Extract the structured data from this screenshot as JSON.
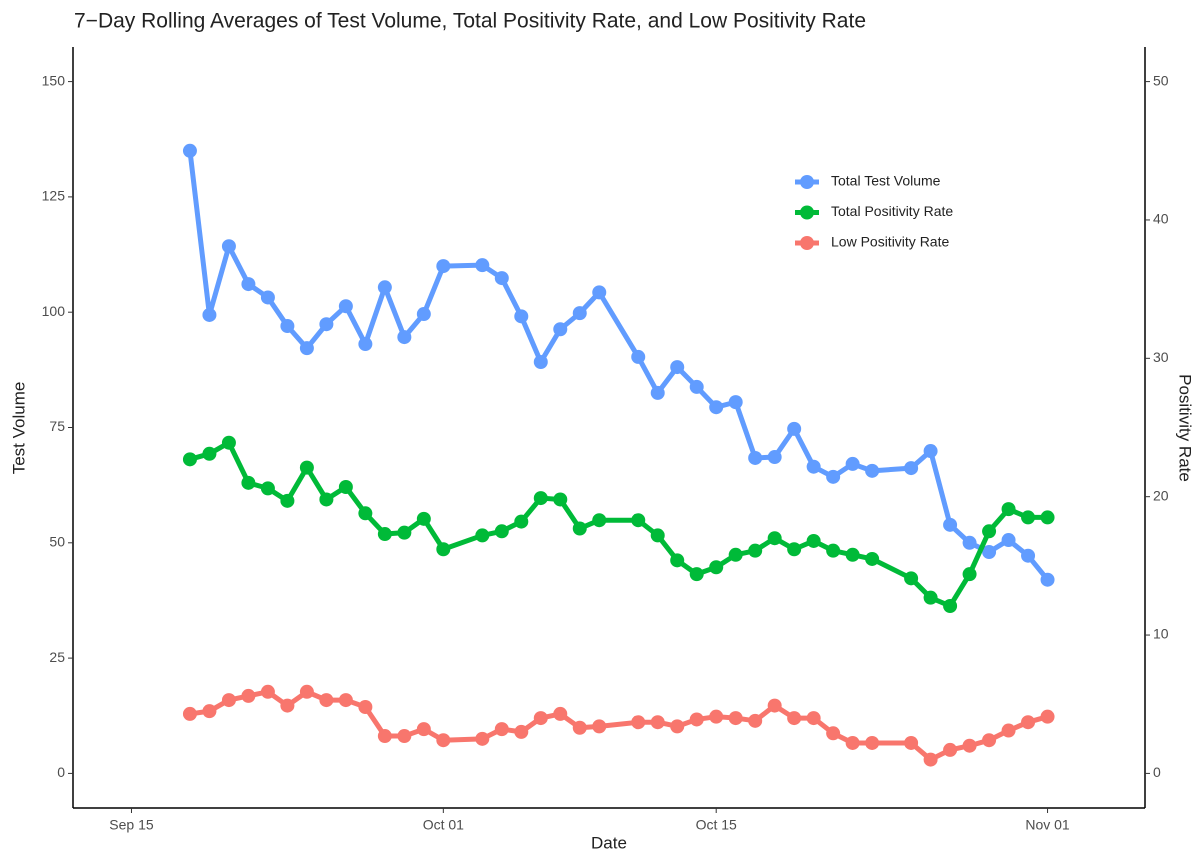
{
  "chart_data": {
    "type": "line",
    "title": "7−Day Rolling Averages of Test Volume, Total Positivity Rate, and Low Positivity Rate",
    "x_label": "Date",
    "y_label": "Test Volume",
    "y2_label": "Positivity Rate",
    "x": [
      "09-18",
      "09-19",
      "09-20",
      "09-21",
      "09-22",
      "09-23",
      "09-24",
      "09-25",
      "09-26",
      "09-27",
      "09-28",
      "09-29",
      "09-30",
      "10-01",
      "10-03",
      "10-04",
      "10-05",
      "10-06",
      "10-07",
      "10-08",
      "10-09",
      "10-11",
      "10-12",
      "10-13",
      "10-14",
      "10-15",
      "10-16",
      "10-17",
      "10-18",
      "10-19",
      "10-20",
      "10-21",
      "10-22",
      "10-23",
      "10-25",
      "10-26",
      "10-27",
      "10-28",
      "10-29",
      "10-30",
      "10-31",
      "11-01"
    ],
    "xlim": [
      "09-12",
      "11-06"
    ],
    "xticks": [
      {
        "value": "09-15",
        "label": "Sep 15"
      },
      {
        "value": "10-01",
        "label": "Oct 01"
      },
      {
        "value": "10-15",
        "label": "Oct 15"
      },
      {
        "value": "11-01",
        "label": "Nov 01"
      }
    ],
    "ylim": [
      -7.5,
      157.5
    ],
    "yticks": [
      0,
      25,
      50,
      75,
      100,
      125,
      150
    ],
    "y2lim": [
      -2.5,
      52.5
    ],
    "y2ticks": [
      0,
      10,
      20,
      30,
      40,
      50
    ],
    "legend_position": "top-right",
    "series": [
      {
        "name": "Total Test Volume",
        "color": "#619cff",
        "values": [
          135,
          99.4,
          114.3,
          106.1,
          103.2,
          97,
          92.2,
          97.4,
          101.3,
          93.1,
          105.4,
          94.6,
          99.6,
          110,
          110.2,
          107.4,
          99.1,
          89.2,
          96.3,
          99.8,
          104.3,
          90.3,
          82.5,
          88.1,
          83.8,
          79.4,
          80.5,
          68.4,
          68.6,
          74.7,
          66.5,
          64.3,
          67.1,
          65.6,
          66.2,
          69.9,
          53.9,
          50,
          48,
          50.6,
          47.2,
          42
        ]
      },
      {
        "name": "Total Positivity Rate",
        "color": "#00ba38",
        "axis": "y2",
        "values": [
          22.7,
          23.1,
          23.9,
          21.0,
          20.6,
          19.7,
          22.1,
          19.8,
          20.7,
          18.8,
          17.3,
          17.4,
          18.4,
          16.2,
          17.2,
          17.5,
          18.2,
          19.9,
          19.8,
          17.7,
          18.3,
          18.3,
          17.2,
          15.4,
          14.4,
          14.9,
          15.8,
          16.1,
          17.0,
          16.2,
          16.8,
          16.1,
          15.8,
          15.5,
          14.1,
          12.7,
          12.1,
          14.4,
          17.5,
          19.1,
          18.5,
          18.5
        ]
      },
      {
        "name": "Low Positivity Rate",
        "color": "#f8766d",
        "axis": "y2",
        "values": [
          4.3,
          4.5,
          5.3,
          5.6,
          5.9,
          4.9,
          5.9,
          5.3,
          5.3,
          4.8,
          2.7,
          2.7,
          3.2,
          2.4,
          2.5,
          3.2,
          3.0,
          4.0,
          4.3,
          3.3,
          3.4,
          3.7,
          3.7,
          3.4,
          3.9,
          4.1,
          4.0,
          3.8,
          4.9,
          4.0,
          4.0,
          2.9,
          2.2,
          2.2,
          2.2,
          1.0,
          1.7,
          2.0,
          2.4,
          3.1,
          3.7,
          4.1
        ]
      }
    ]
  }
}
